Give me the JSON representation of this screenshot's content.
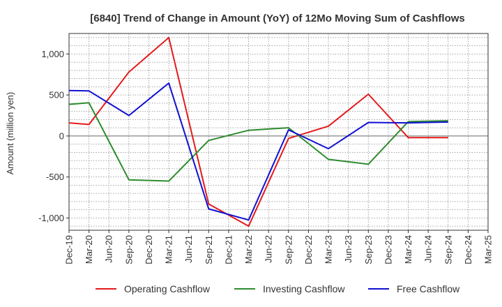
{
  "chart_data": {
    "type": "line",
    "title": "[6840]  Trend of Change in Amount (YoY) of 12Mo Moving Sum of Cashflows",
    "xlabel": "",
    "ylabel": "Amount (million yen)",
    "ylim": [
      -1150,
      1250
    ],
    "yticks": [
      1000,
      500,
      0,
      -500,
      -1000
    ],
    "ytick_labels": [
      "1,000",
      "500",
      "0",
      "-500",
      "-1,000"
    ],
    "grid": true,
    "legend_position": "bottom",
    "categories": [
      "Dec-19",
      "Mar-20",
      "Jun-20",
      "Sep-20",
      "Dec-20",
      "Mar-21",
      "Jun-21",
      "Sep-21",
      "Dec-21",
      "Mar-22",
      "Jun-22",
      "Sep-22",
      "Dec-22",
      "Mar-23",
      "Jun-23",
      "Sep-23",
      "Dec-23",
      "Mar-24",
      "Jun-24",
      "Sep-24",
      "Dec-24",
      "Mar-25"
    ],
    "series": [
      {
        "name": "Operating Cashflow",
        "color": "#e31a1c",
        "values": [
          160,
          140,
          null,
          780,
          null,
          1200,
          null,
          -830,
          null,
          -1100,
          null,
          -30,
          null,
          120,
          null,
          510,
          null,
          -20,
          null,
          -20,
          null,
          null
        ]
      },
      {
        "name": "Investing Cashflow",
        "color": "#2e8b2e",
        "values": [
          385,
          405,
          null,
          -535,
          null,
          -550,
          null,
          -55,
          null,
          70,
          null,
          100,
          null,
          -285,
          null,
          -345,
          null,
          175,
          null,
          185,
          null,
          null
        ]
      },
      {
        "name": "Free Cashflow",
        "color": "#1010d0",
        "values": [
          555,
          550,
          null,
          250,
          null,
          645,
          null,
          -890,
          null,
          -1025,
          null,
          75,
          null,
          -155,
          null,
          165,
          null,
          160,
          null,
          170,
          null,
          null
        ]
      }
    ]
  }
}
